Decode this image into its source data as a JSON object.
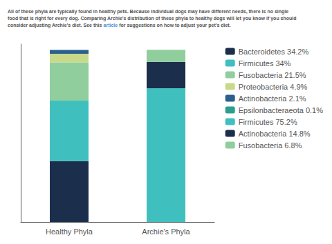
{
  "chart_data": {
    "type": "bar",
    "annotations": [
      {
        "text": "All of these phyla are typically found in healthy pets. Because individual dogs may have different needs, there is no single\nfood that is right for every dog. Comparing Archie's distribution of these phyla to healthy dogs will let you know if you should\nconsider adjusting Archie's diet. See this ",
        "color": "#555555"
      },
      {
        "text": "article",
        "color": "#4a90d9"
      },
      {
        "text": " for suggestions on how to adjust your pet's diet.",
        "color": "#555555"
      }
    ],
    "categories": [
      "Healthy Phyla",
      "Archie's Phyla"
    ],
    "series": [
      {
        "name": "Bacteroidetes 34.2%",
        "color": "#1b2e4b",
        "values": [
          34.2,
          null
        ]
      },
      {
        "name": "Firmicutes 34%",
        "color": "#40bfbf",
        "values": [
          34.0,
          null
        ]
      },
      {
        "name": "Fusobacteria 21.5%",
        "color": "#90ce9e",
        "values": [
          21.5,
          null
        ]
      },
      {
        "name": "Proteobacteria 4.9%",
        "color": "#c8da8a",
        "values": [
          4.9,
          null
        ]
      },
      {
        "name": "Actinobacteria 2.1%",
        "color": "#2b5f8e",
        "values": [
          2.1,
          null
        ]
      },
      {
        "name": "Epsilonbacteraeota 0.1%",
        "color": "#2c9e90",
        "values": [
          0.1,
          null
        ]
      },
      {
        "name": "Firmicutes 75.2%",
        "color": "#40bfbf",
        "values": [
          null,
          75.2
        ]
      },
      {
        "name": "Actinobacteria 14.8%",
        "color": "#1b2e4b",
        "values": [
          null,
          14.8
        ]
      },
      {
        "name": "Fusobacteria 6.8%",
        "color": "#90ce9e",
        "values": [
          null,
          6.8
        ]
      }
    ],
    "stacked": true,
    "ylim": [
      0,
      100
    ],
    "tick_labels": "x",
    "grid": false,
    "legend": "right"
  }
}
